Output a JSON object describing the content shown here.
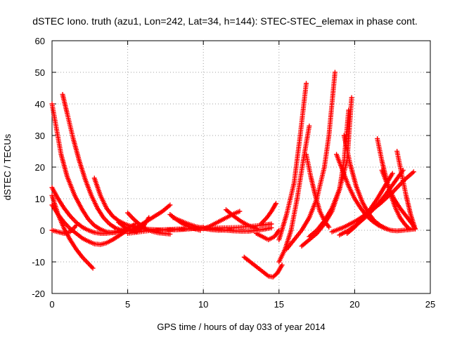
{
  "chart_data": {
    "type": "scatter",
    "title": "dSTEC Iono. truth (azu1, Lon=242, Lat=34, h=144): STEC-STEC_elemax in phase cont.",
    "xlabel": "GPS time / hours of day 033 of year 2014",
    "ylabel": "dSTEC  / TECUs",
    "xlim": [
      0,
      25
    ],
    "ylim": [
      -20,
      60
    ],
    "xticks": [
      "0",
      "5",
      "10",
      "15",
      "20",
      "25"
    ],
    "yticks": [
      "-20",
      "-10",
      "0",
      "10",
      "20",
      "30",
      "40",
      "50",
      "60"
    ],
    "grid": true,
    "marker": "+",
    "color": "#ff0000",
    "series": [
      {
        "x": [
          0.0,
          0.3,
          0.6,
          1.0,
          1.5,
          2.0,
          2.4,
          2.8,
          3.2,
          3.6,
          4.0,
          4.4,
          4.8,
          5.2,
          5.6
        ],
        "y": [
          40,
          32,
          24,
          17,
          11,
          6.5,
          3.5,
          1.5,
          0.3,
          -0.5,
          -0.8,
          -0.7,
          -0.3,
          0.2,
          0.8
        ]
      },
      {
        "x": [
          0.7,
          1.0,
          1.4,
          1.8,
          2.2,
          2.6,
          3.0,
          3.4,
          3.8,
          4.2,
          4.6,
          5.0,
          5.4
        ],
        "y": [
          43,
          37,
          29,
          22,
          16,
          11,
          7,
          4,
          2,
          0.7,
          0,
          -0.3,
          -0.2
        ]
      },
      {
        "x": [
          0.0,
          0.4,
          0.8,
          1.2,
          1.6,
          2.0,
          2.4,
          2.8,
          3.2,
          3.6,
          4.0,
          4.4,
          4.8,
          5.2,
          5.5
        ],
        "y": [
          13.5,
          10,
          7,
          4.5,
          2.5,
          1,
          0,
          -0.7,
          -1,
          -1,
          -0.7,
          -0.2,
          0.4,
          1.2,
          2
        ]
      },
      {
        "x": [
          0.0,
          0.4,
          0.8,
          1.2,
          1.6,
          2.0,
          2.4,
          2.7
        ],
        "y": [
          11,
          5,
          0.5,
          -3,
          -6,
          -8.5,
          -10.5,
          -12
        ]
      },
      {
        "x": [
          0.0,
          0.4,
          0.8,
          1.2,
          1.6,
          2.0,
          2.4,
          2.8,
          3.2,
          3.6,
          4.0,
          4.4,
          4.8
        ],
        "y": [
          8,
          5,
          2.5,
          0.5,
          -1,
          -2.5,
          -3.5,
          -4.3,
          -4.5,
          -4,
          -3,
          -1.8,
          -0.5
        ]
      },
      {
        "x": [
          0.0,
          0.4,
          0.8,
          1.2,
          1.6
        ],
        "y": [
          0,
          -0.5,
          -1,
          -0.5,
          1.5
        ]
      },
      {
        "x": [
          2.8,
          3.2,
          3.6,
          4.0,
          4.4,
          4.8,
          5.2,
          5.6,
          6.0,
          6.4,
          6.8,
          7.2,
          7.6,
          8.0,
          8.4,
          8.8,
          9.2,
          9.6,
          10.0
        ],
        "y": [
          16.5,
          11,
          7,
          4.5,
          3,
          2,
          1.3,
          0.8,
          0.5,
          0.3,
          0.2,
          0.1,
          0.1,
          0.1,
          0.2,
          0.3,
          0.5,
          0.7,
          1
        ]
      },
      {
        "x": [
          4.4,
          4.8,
          5.2,
          5.6,
          6.0,
          6.4
        ],
        "y": [
          2.5,
          1,
          0,
          -0.5,
          1,
          4
        ]
      },
      {
        "x": [
          5.0,
          5.4,
          5.8,
          6.2,
          6.6,
          7.0,
          7.4,
          7.8
        ],
        "y": [
          5.5,
          3.5,
          1.8,
          0.5,
          -0.3,
          -0.8,
          -1,
          -1.2
        ]
      },
      {
        "x": [
          5.3,
          5.8,
          6.3,
          6.8,
          7.3,
          7.8
        ],
        "y": [
          0,
          1.5,
          3,
          4.5,
          6,
          8
        ]
      },
      {
        "x": [
          5.0,
          5.8,
          6.6,
          7.4,
          8.2,
          9.0,
          9.8,
          10.6,
          11.4,
          12.2,
          13.0,
          13.8,
          14.5
        ],
        "y": [
          -1,
          -0.5,
          0,
          0.2,
          0.4,
          0.5,
          0.6,
          0.7,
          0.8,
          0.9,
          1.2,
          1.6,
          2
        ]
      },
      {
        "x": [
          7.8,
          8.2,
          8.6,
          9.0,
          9.4,
          9.8
        ],
        "y": [
          5,
          3.5,
          2.2,
          1.2,
          0.5,
          0
        ]
      },
      {
        "x": [
          8.0,
          8.5,
          9.0,
          9.5,
          10.0,
          10.5,
          11.0,
          11.5
        ],
        "y": [
          4,
          3,
          2,
          1.2,
          0.6,
          0.2,
          0,
          0.1
        ]
      },
      {
        "x": [
          10.0,
          10.4,
          10.8,
          11.2,
          11.6,
          12.0,
          12.4
        ],
        "y": [
          0.5,
          1.2,
          2.2,
          3.2,
          4.2,
          5.2,
          6
        ]
      },
      {
        "x": [
          11.5,
          12.0,
          12.5,
          13.0,
          13.5
        ],
        "y": [
          6.5,
          4.5,
          2.8,
          1.5,
          0.5
        ]
      },
      {
        "x": [
          10.5,
          11.0,
          11.5,
          12.0,
          12.5,
          13.0,
          13.5,
          14.0,
          14.5
        ],
        "y": [
          0.5,
          0.2,
          0,
          -0.2,
          -0.3,
          -0.3,
          0,
          0.3,
          0.8
        ]
      },
      {
        "x": [
          12.7,
          13.1,
          13.5,
          13.9,
          14.3,
          14.6,
          14.9,
          15.2
        ],
        "y": [
          -8.5,
          -10,
          -11.5,
          -13,
          -14.5,
          -14.8,
          -13.5,
          -11
        ]
      },
      {
        "x": [
          13.5,
          13.9,
          14.3,
          14.7,
          15.0
        ],
        "y": [
          -1,
          -2,
          -3,
          -2,
          0
        ]
      },
      {
        "x": [
          13.8,
          14.2,
          14.5,
          14.8
        ],
        "y": [
          2,
          4,
          6,
          8.5
        ]
      },
      {
        "x": [
          15.0,
          15.4,
          15.8,
          16.2,
          16.6,
          17.0
        ],
        "y": [
          -10,
          -6,
          0,
          10,
          22,
          33
        ]
      },
      {
        "x": [
          15.0,
          15.5,
          16.0,
          16.4,
          16.8
        ],
        "y": [
          -3,
          5,
          15,
          30,
          46.5
        ]
      },
      {
        "x": [
          15.5,
          16.0,
          16.5,
          17.0,
          17.5,
          18.0,
          18.3,
          18.7
        ],
        "y": [
          -6,
          -3,
          0,
          4,
          10,
          20,
          30,
          50
        ]
      },
      {
        "x": [
          16.5,
          17.0,
          17.5,
          18.0,
          18.5,
          19.0,
          19.3,
          19.6
        ],
        "y": [
          -5,
          -3,
          -1,
          2,
          6,
          13,
          22,
          38
        ]
      },
      {
        "x": [
          17.0,
          17.5,
          18.0,
          18.5,
          19.0,
          19.5,
          19.8
        ],
        "y": [
          -2,
          0,
          3,
          7,
          13,
          22,
          42
        ]
      },
      {
        "x": [
          16.8,
          17.1,
          17.4,
          17.7,
          18.0,
          18.3
        ],
        "y": [
          24,
          17,
          11,
          6,
          3,
          1
        ]
      },
      {
        "x": [
          18.8,
          19.2,
          19.6,
          20.0,
          20.4,
          20.8,
          21.2,
          21.6,
          22.0,
          22.4,
          22.8,
          23.2,
          23.6,
          24.0
        ],
        "y": [
          24,
          19,
          14,
          10,
          7,
          4.5,
          2.8,
          1.5,
          0.6,
          0,
          -0.2,
          0,
          0.2,
          0.4
        ]
      },
      {
        "x": [
          19.3,
          19.7,
          20.1,
          20.5,
          20.9,
          21.3,
          21.7,
          22.1
        ],
        "y": [
          30,
          21,
          14,
          9,
          5.5,
          3,
          1.5,
          0.5
        ]
      },
      {
        "x": [
          21.5,
          21.8,
          22.1,
          22.4,
          22.7,
          23.0,
          23.3,
          23.6
        ],
        "y": [
          29,
          22,
          16,
          11,
          7,
          4,
          2,
          0.5
        ]
      },
      {
        "x": [
          21.8,
          22.2,
          22.6,
          23.0,
          23.4,
          23.8,
          24.0
        ],
        "y": [
          19,
          14,
          10,
          7,
          4.5,
          2,
          0.5
        ]
      },
      {
        "x": [
          22.8,
          23.1,
          23.4,
          23.7,
          24.0
        ],
        "y": [
          25,
          18,
          11,
          5,
          0.5
        ]
      },
      {
        "x": [
          18.5,
          19.3,
          20.1,
          20.9,
          21.7,
          22.5,
          23.3,
          23.9
        ],
        "y": [
          -0.5,
          1,
          3,
          5.5,
          8.5,
          12,
          16,
          18.5
        ]
      },
      {
        "x": [
          19.0,
          19.6,
          20.2,
          20.8,
          21.4,
          22.0,
          22.6,
          23.2
        ],
        "y": [
          -1.5,
          0,
          2,
          4.5,
          7.5,
          11,
          15,
          19
        ]
      },
      {
        "x": [
          19.5,
          20.0,
          20.5,
          21.0,
          21.5,
          22.0,
          22.5
        ],
        "y": [
          -1,
          1,
          3.5,
          6.5,
          10,
          14,
          18
        ]
      }
    ]
  }
}
